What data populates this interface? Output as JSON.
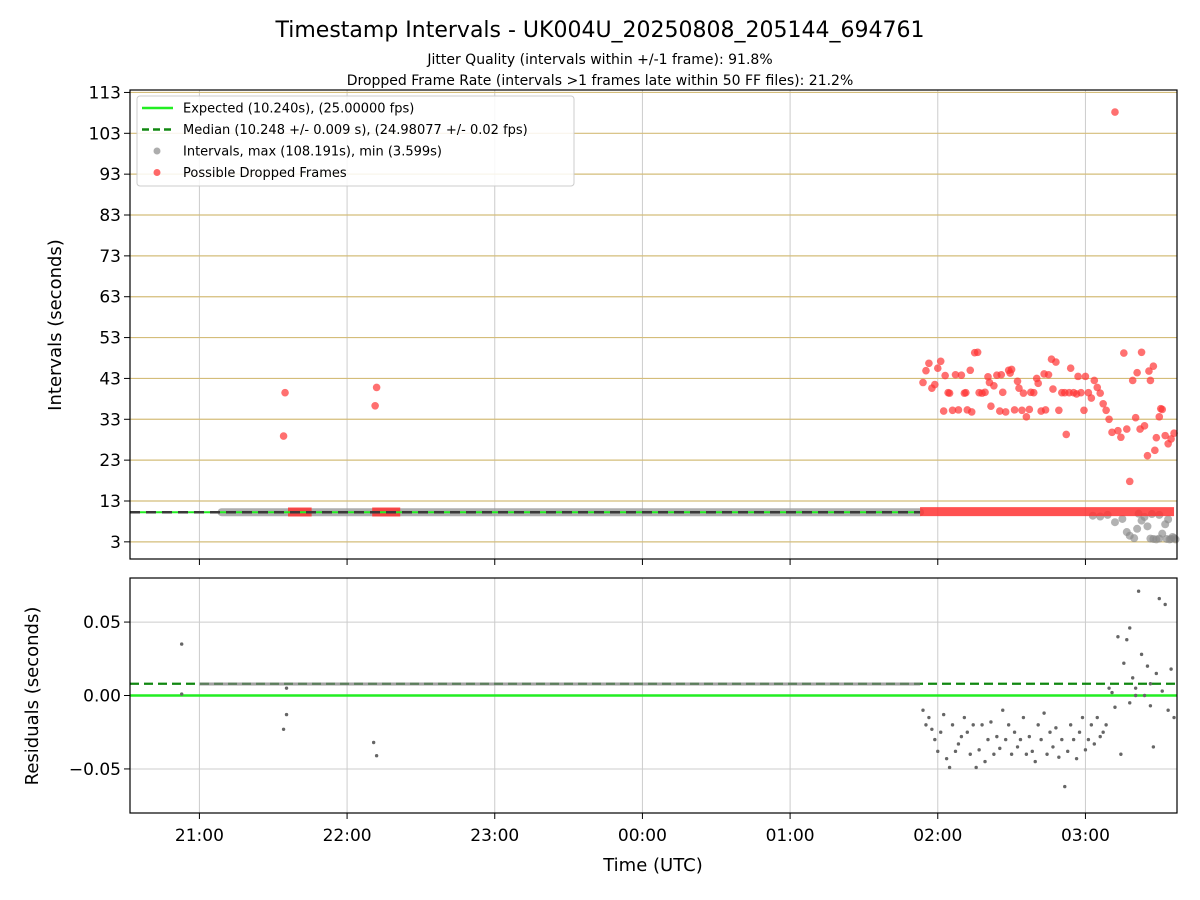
{
  "chart_data": [
    {
      "type": "scatter",
      "title": "Timestamp Intervals - UK004U_20250808_205144_694761",
      "subtitle_lines": [
        "Jitter Quality (intervals within +/-1 frame): 91.8%",
        "Dropped Frame Rate (intervals >1 frames late within 50 FF files): 21.2%"
      ],
      "xlabel": "",
      "ylabel": "Intervals (seconds)",
      "x_unit": "hours since 00:00 UTC (negative = previous day)",
      "xlim": [
        -3.47,
        3.62
      ],
      "ylim": [
        -1.2,
        113.6
      ],
      "yticks": [
        3,
        13,
        23,
        33,
        43,
        53,
        63,
        73,
        83,
        93,
        103,
        113
      ],
      "ytick_labels": [
        "3",
        "13",
        "23",
        "33",
        "43",
        "53",
        "63",
        "73",
        "83",
        "93",
        "103",
        "113"
      ],
      "grid": true,
      "legend_placement": "upper-left",
      "legend": [
        {
          "label": "Expected (10.240s), (25.00000 fps)",
          "style": "solid-line",
          "color": "#22ee22"
        },
        {
          "label": "Median (10.248 +/- 0.009 s), (24.98077 +/- 0.02 fps)",
          "style": "dashed-line",
          "color": "#118811"
        },
        {
          "label": "Intervals, max (108.191s), min (3.599s)",
          "style": "marker",
          "color": "#999999"
        },
        {
          "label": "Possible Dropped Frames",
          "style": "marker",
          "color": "#ff4444"
        }
      ],
      "series": [
        {
          "name": "Expected (10.240s), (25.00000 fps)",
          "kind": "hline",
          "value": 10.24,
          "color": "#22ee22"
        },
        {
          "name": "Median (10.248 +/- 0.009 s), (24.98077 +/- 0.02 fps)",
          "kind": "hline",
          "value": 10.248,
          "color": "#118811"
        },
        {
          "name": "Intervals, max (108.191s), min (3.599s)",
          "kind": "band_and_points",
          "band": {
            "x_start": -2.85,
            "x_end": 1.88,
            "value": 10.248
          },
          "points": [
            [
              3.05,
              9.4
            ],
            [
              3.1,
              9.2
            ],
            [
              3.15,
              9.6
            ],
            [
              3.2,
              7.8
            ],
            [
              3.25,
              8.6
            ],
            [
              3.28,
              5.4
            ],
            [
              3.3,
              4.5
            ],
            [
              3.33,
              3.9
            ],
            [
              3.35,
              6.2
            ],
            [
              3.38,
              8.2
            ],
            [
              3.4,
              9.1
            ],
            [
              3.42,
              6.8
            ],
            [
              3.44,
              3.8
            ],
            [
              3.46,
              3.7
            ],
            [
              3.48,
              3.6
            ],
            [
              3.5,
              3.8
            ],
            [
              3.52,
              5.0
            ],
            [
              3.54,
              7.3
            ],
            [
              3.55,
              3.7
            ],
            [
              3.56,
              8.5
            ],
            [
              3.57,
              3.6
            ],
            [
              3.58,
              3.7
            ],
            [
              3.59,
              4.2
            ],
            [
              3.6,
              3.9
            ],
            [
              3.61,
              3.6
            ],
            [
              3.45,
              9.8
            ],
            [
              3.36,
              9.9
            ],
            [
              3.5,
              9.6
            ]
          ],
          "color": "#888888"
        },
        {
          "name": "Possible Dropped Frames",
          "kind": "points_and_bands",
          "bands": [
            {
              "x_start": -2.4,
              "x_end": -2.24,
              "value": 10.3
            },
            {
              "x_start": -1.83,
              "x_end": -1.64,
              "value": 10.3
            },
            {
              "x_start": 1.88,
              "x_end": 3.6,
              "value": 10.4
            }
          ],
          "points": [
            [
              -2.43,
              28.9
            ],
            [
              -2.42,
              39.5
            ],
            [
              -1.81,
              36.3
            ],
            [
              -1.8,
              40.8
            ],
            [
              1.9,
              42.0
            ],
            [
              1.92,
              44.9
            ],
            [
              1.94,
              46.7
            ],
            [
              1.96,
              40.6
            ],
            [
              1.98,
              41.5
            ],
            [
              2.0,
              45.5
            ],
            [
              2.02,
              47.2
            ],
            [
              2.04,
              35.0
            ],
            [
              2.05,
              43.7
            ],
            [
              2.07,
              39.5
            ],
            [
              2.08,
              39.4
            ],
            [
              2.1,
              35.2
            ],
            [
              2.12,
              43.9
            ],
            [
              2.14,
              35.3
            ],
            [
              2.16,
              43.8
            ],
            [
              2.18,
              39.4
            ],
            [
              2.19,
              39.5
            ],
            [
              2.2,
              35.3
            ],
            [
              2.22,
              45.0
            ],
            [
              2.23,
              34.8
            ],
            [
              2.25,
              49.3
            ],
            [
              2.27,
              49.4
            ],
            [
              2.28,
              39.5
            ],
            [
              2.3,
              39.4
            ],
            [
              2.32,
              39.6
            ],
            [
              2.34,
              43.4
            ],
            [
              2.35,
              42.0
            ],
            [
              2.36,
              36.2
            ],
            [
              2.38,
              41.2
            ],
            [
              2.4,
              43.8
            ],
            [
              2.42,
              35.0
            ],
            [
              2.43,
              43.9
            ],
            [
              2.44,
              39.6
            ],
            [
              2.46,
              34.8
            ],
            [
              2.48,
              45.0
            ],
            [
              2.49,
              44.3
            ],
            [
              2.5,
              45.2
            ],
            [
              2.52,
              35.3
            ],
            [
              2.54,
              42.3
            ],
            [
              2.55,
              40.6
            ],
            [
              2.57,
              35.2
            ],
            [
              2.58,
              39.4
            ],
            [
              2.6,
              33.6
            ],
            [
              2.62,
              35.4
            ],
            [
              2.63,
              39.6
            ],
            [
              2.65,
              39.5
            ],
            [
              2.67,
              43.0
            ],
            [
              2.68,
              41.8
            ],
            [
              2.7,
              35.0
            ],
            [
              2.72,
              44.1
            ],
            [
              2.73,
              35.3
            ],
            [
              2.75,
              43.9
            ],
            [
              2.77,
              47.7
            ],
            [
              2.78,
              40.4
            ],
            [
              2.8,
              47.0
            ],
            [
              2.82,
              35.2
            ],
            [
              2.84,
              39.5
            ],
            [
              2.86,
              39.5
            ],
            [
              2.87,
              29.3
            ],
            [
              2.89,
              39.5
            ],
            [
              2.9,
              45.5
            ],
            [
              2.92,
              39.5
            ],
            [
              2.94,
              39.2
            ],
            [
              2.95,
              43.5
            ],
            [
              2.97,
              39.5
            ],
            [
              2.99,
              35.2
            ],
            [
              3.0,
              43.5
            ],
            [
              3.02,
              39.5
            ],
            [
              3.04,
              38.2
            ],
            [
              3.06,
              42.5
            ],
            [
              3.08,
              40.8
            ],
            [
              3.1,
              39.4
            ],
            [
              3.12,
              36.8
            ],
            [
              3.14,
              35.2
            ],
            [
              3.16,
              33.0
            ],
            [
              3.18,
              29.8
            ],
            [
              3.2,
              108.19
            ],
            [
              3.22,
              30.2
            ],
            [
              3.24,
              28.6
            ],
            [
              3.26,
              49.2
            ],
            [
              3.28,
              30.6
            ],
            [
              3.3,
              17.8
            ],
            [
              3.32,
              42.5
            ],
            [
              3.34,
              33.4
            ],
            [
              3.35,
              44.4
            ],
            [
              3.37,
              30.6
            ],
            [
              3.38,
              49.4
            ],
            [
              3.4,
              31.4
            ],
            [
              3.42,
              24.1
            ],
            [
              3.43,
              44.8
            ],
            [
              3.44,
              42.5
            ],
            [
              3.46,
              46.0
            ],
            [
              3.47,
              25.4
            ],
            [
              3.48,
              28.5
            ],
            [
              3.5,
              33.6
            ],
            [
              3.51,
              35.6
            ],
            [
              3.52,
              35.4
            ],
            [
              3.54,
              29.0
            ],
            [
              3.56,
              27.0
            ],
            [
              3.58,
              28.2
            ],
            [
              3.6,
              29.6
            ]
          ],
          "color": "#ff3333"
        }
      ]
    },
    {
      "type": "scatter",
      "title": "",
      "xlabel": "Time (UTC)",
      "ylabel": "Residuals (seconds)",
      "x_unit": "hours since 00:00 UTC (negative = previous day)",
      "xlim": [
        -3.47,
        3.62
      ],
      "ylim": [
        -0.08,
        0.08
      ],
      "yticks": [
        -0.05,
        0.0,
        0.05
      ],
      "ytick_labels": [
        "−0.05",
        "0.00",
        "0.05"
      ],
      "xticks": [
        -3,
        -2,
        -1,
        0,
        1,
        2,
        3
      ],
      "xtick_labels": [
        "21:00",
        "22:00",
        "23:00",
        "00:00",
        "01:00",
        "02:00",
        "03:00"
      ],
      "grid": true,
      "series": [
        {
          "name": "Expected (10.240s), (25.00000 fps)",
          "kind": "hline",
          "value": 0.0,
          "color": "#22ee22"
        },
        {
          "name": "Median (10.248 +/- 0.009 s), (24.98077 +/- 0.02 fps)",
          "kind": "hline",
          "value": 0.008,
          "color": "#118811"
        },
        {
          "name": "Intervals, max (108.191s), min (3.599s)",
          "kind": "band_and_points",
          "band": {
            "x_start": -3.0,
            "x_end": 1.88,
            "value": 0.0078
          },
          "points": [
            [
              -3.12,
              0.035
            ],
            [
              -3.12,
              0.001
            ],
            [
              -2.43,
              -0.023
            ],
            [
              -2.41,
              -0.013
            ],
            [
              -2.41,
              0.005
            ],
            [
              -1.82,
              -0.032
            ],
            [
              -1.8,
              -0.041
            ],
            [
              1.9,
              -0.01
            ],
            [
              1.92,
              -0.02
            ],
            [
              1.94,
              -0.015
            ],
            [
              1.96,
              -0.023
            ],
            [
              1.98,
              -0.03
            ],
            [
              2.0,
              -0.038
            ],
            [
              2.02,
              -0.025
            ],
            [
              2.04,
              -0.013
            ],
            [
              2.06,
              -0.043
            ],
            [
              2.08,
              -0.049
            ],
            [
              2.1,
              -0.02
            ],
            [
              2.12,
              -0.038
            ],
            [
              2.14,
              -0.033
            ],
            [
              2.16,
              -0.028
            ],
            [
              2.18,
              -0.015
            ],
            [
              2.2,
              -0.025
            ],
            [
              2.22,
              -0.04
            ],
            [
              2.24,
              -0.02
            ],
            [
              2.26,
              -0.049
            ],
            [
              2.28,
              -0.037
            ],
            [
              2.3,
              -0.02
            ],
            [
              2.32,
              -0.045
            ],
            [
              2.34,
              -0.03
            ],
            [
              2.36,
              -0.018
            ],
            [
              2.38,
              -0.04
            ],
            [
              2.4,
              -0.028
            ],
            [
              2.42,
              -0.036
            ],
            [
              2.44,
              -0.01
            ],
            [
              2.46,
              -0.03
            ],
            [
              2.48,
              -0.02
            ],
            [
              2.5,
              -0.04
            ],
            [
              2.52,
              -0.025
            ],
            [
              2.54,
              -0.035
            ],
            [
              2.56,
              -0.03
            ],
            [
              2.58,
              -0.015
            ],
            [
              2.6,
              -0.04
            ],
            [
              2.62,
              -0.028
            ],
            [
              2.64,
              -0.038
            ],
            [
              2.66,
              -0.045
            ],
            [
              2.68,
              -0.02
            ],
            [
              2.7,
              -0.03
            ],
            [
              2.72,
              -0.012
            ],
            [
              2.74,
              -0.04
            ],
            [
              2.76,
              -0.025
            ],
            [
              2.78,
              -0.035
            ],
            [
              2.8,
              -0.022
            ],
            [
              2.82,
              -0.042
            ],
            [
              2.84,
              -0.03
            ],
            [
              2.86,
              -0.062
            ],
            [
              2.88,
              -0.038
            ],
            [
              2.9,
              -0.02
            ],
            [
              2.92,
              -0.03
            ],
            [
              2.94,
              -0.043
            ],
            [
              2.96,
              -0.025
            ],
            [
              2.98,
              -0.015
            ],
            [
              3.0,
              -0.037
            ],
            [
              3.02,
              -0.03
            ],
            [
              3.04,
              -0.02
            ],
            [
              3.06,
              -0.033
            ],
            [
              3.08,
              -0.015
            ],
            [
              3.1,
              -0.028
            ],
            [
              3.12,
              -0.025
            ],
            [
              3.14,
              -0.02
            ],
            [
              3.16,
              0.005
            ],
            [
              3.18,
              0.002
            ],
            [
              3.2,
              -0.008
            ],
            [
              3.22,
              0.04
            ],
            [
              3.24,
              -0.04
            ],
            [
              3.26,
              0.022
            ],
            [
              3.28,
              0.038
            ],
            [
              3.3,
              0.046
            ],
            [
              3.32,
              0.012
            ],
            [
              3.34,
              0.0
            ],
            [
              3.36,
              0.071
            ],
            [
              3.38,
              0.028
            ],
            [
              3.4,
              0.0
            ],
            [
              3.42,
              0.02
            ],
            [
              3.44,
              -0.007
            ],
            [
              3.46,
              -0.035
            ],
            [
              3.48,
              0.015
            ],
            [
              3.5,
              0.066
            ],
            [
              3.52,
              0.003
            ],
            [
              3.54,
              0.062
            ],
            [
              3.56,
              -0.01
            ],
            [
              3.58,
              0.018
            ],
            [
              3.6,
              -0.015
            ],
            [
              3.34,
              0.005
            ],
            [
              3.44,
              0.008
            ],
            [
              3.3,
              -0.005
            ]
          ],
          "color": "#666666"
        }
      ]
    }
  ]
}
